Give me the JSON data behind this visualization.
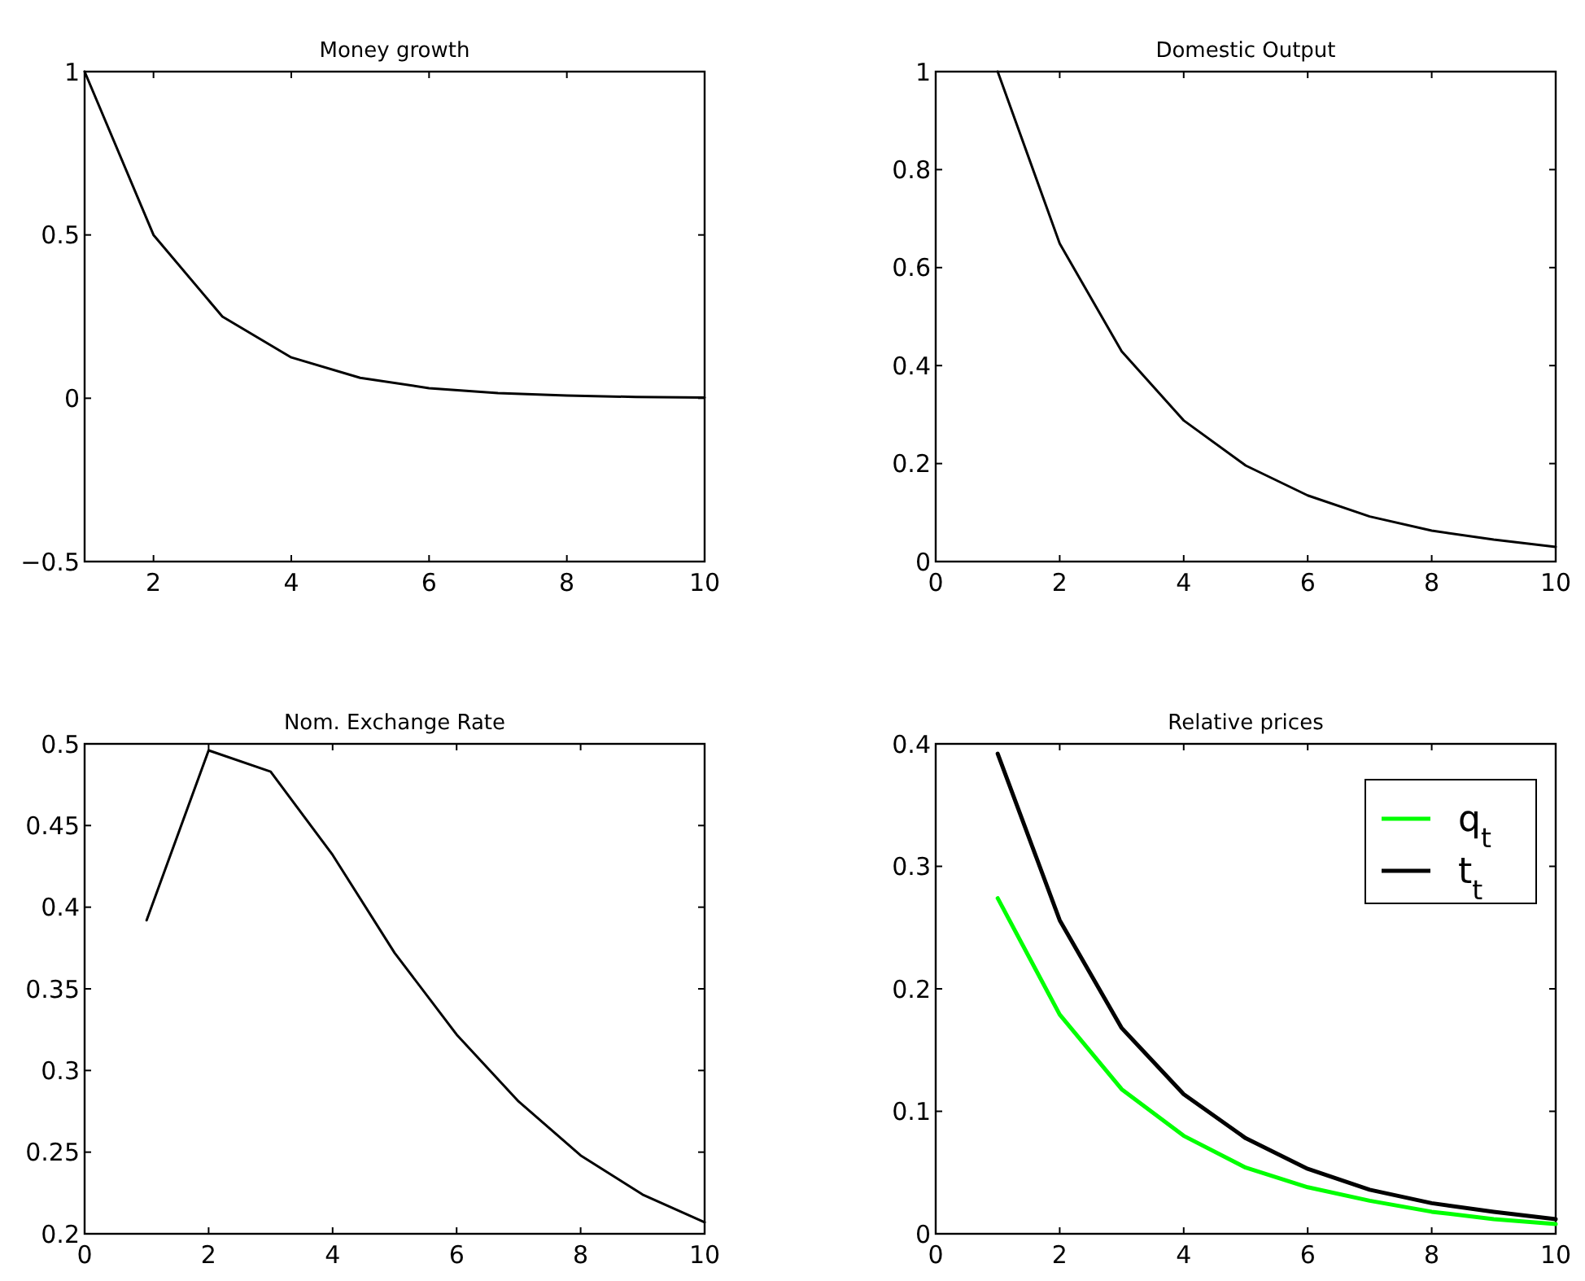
{
  "chart_data": [
    {
      "type": "line",
      "title": "Money growth",
      "x": [
        1,
        2,
        3,
        4,
        5,
        6,
        7,
        8,
        9,
        10
      ],
      "series": [
        {
          "color": "#000000",
          "values": [
            1,
            0.5,
            0.25,
            0.125,
            0.0625,
            0.031,
            0.016,
            0.008,
            0.004,
            0.002
          ]
        }
      ],
      "xlim": [
        1,
        10
      ],
      "xticks": [
        2,
        4,
        6,
        8,
        10
      ],
      "ylim": [
        -0.5,
        1
      ],
      "yticks": [
        {
          "value": -0.5,
          "label": "−0.5"
        },
        0.5,
        0,
        1
      ],
      "grid": false,
      "legend": false
    },
    {
      "type": "line",
      "title": "Domestic Output",
      "x": [
        1,
        2,
        3,
        4,
        5,
        6,
        7,
        8,
        9,
        10
      ],
      "series": [
        {
          "color": "#000000",
          "values": [
            1,
            0.649,
            0.429,
            0.288,
            0.196,
            0.135,
            0.092,
            0.063,
            0.045,
            0.03
          ]
        }
      ],
      "xlim": [
        0,
        10
      ],
      "xticks": [
        0,
        2,
        4,
        6,
        8,
        10
      ],
      "ylim": [
        0,
        1
      ],
      "yticks": [
        0,
        0.2,
        0.4,
        0.6,
        0.8,
        1
      ],
      "grid": false,
      "legend": false
    },
    {
      "type": "line",
      "title": "Nom. Exchange Rate",
      "x": [
        1,
        2,
        3,
        4,
        5,
        6,
        7,
        8,
        9,
        10
      ],
      "series": [
        {
          "color": "#000000",
          "values": [
            0.392,
            0.496,
            0.483,
            0.432,
            0.372,
            0.322,
            0.281,
            0.248,
            0.224,
            0.207
          ]
        }
      ],
      "xlim": [
        0,
        10
      ],
      "xticks": [
        0,
        2,
        4,
        6,
        8,
        10
      ],
      "ylim": [
        0.2,
        0.5
      ],
      "yticks": [
        0.2,
        0.25,
        0.3,
        0.35,
        0.4,
        0.45,
        0.5
      ],
      "grid": false,
      "legend": false
    },
    {
      "type": "line",
      "title": "Relative prices",
      "x": [
        1,
        2,
        3,
        4,
        5,
        6,
        7,
        8,
        9,
        10
      ],
      "series": [
        {
          "name": "q$_{t}$",
          "color": "#00ff00",
          "values": [
            0.274,
            0.179,
            0.118,
            0.08,
            0.054,
            0.038,
            0.027,
            0.018,
            0.012,
            0.008
          ]
        },
        {
          "name": "t$_{t}$",
          "color": "#000000",
          "values": [
            0.392,
            0.256,
            0.168,
            0.114,
            0.078,
            0.053,
            0.036,
            0.025,
            0.018,
            0.012
          ]
        }
      ],
      "xlim": [
        0,
        10
      ],
      "xticks": [
        0,
        2,
        4,
        6,
        8,
        10
      ],
      "ylim": [
        0,
        0.4
      ],
      "yticks": [
        0,
        0.1,
        0.2,
        0.3,
        0.4
      ],
      "grid": false,
      "legend": "top right"
    }
  ]
}
